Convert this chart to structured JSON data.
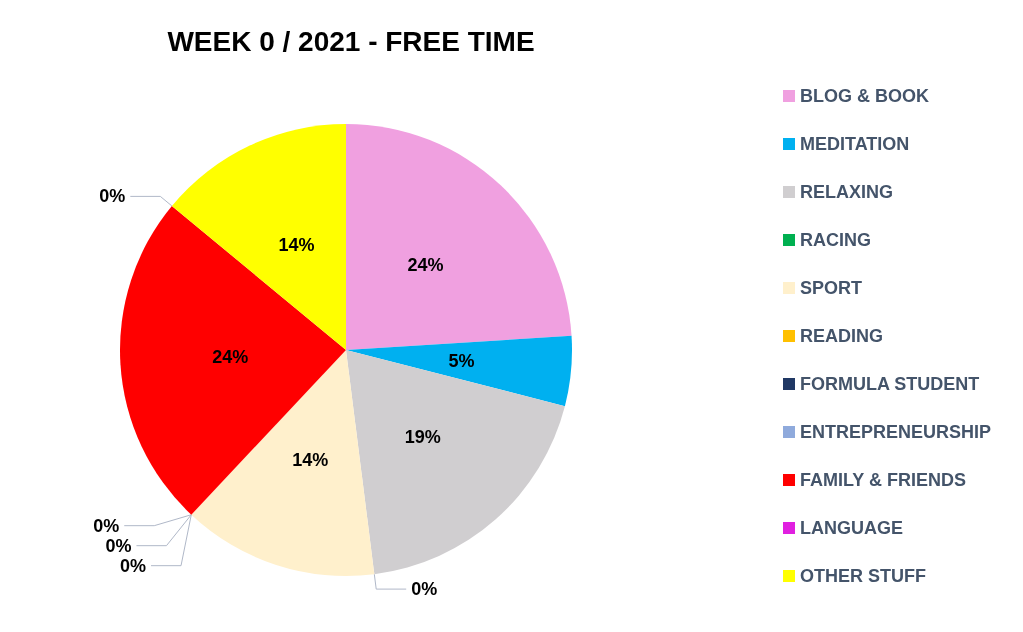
{
  "chart_data": {
    "type": "pie",
    "title": "WEEK 0 / 2021 - FREE TIME",
    "categories": [
      "BLOG & BOOK",
      "MEDITATION",
      "RELAXING",
      "RACING",
      "SPORT",
      "READING",
      "FORMULA STUDENT",
      "ENTREPRENEURSHIP",
      "FAMILY & FRIENDS",
      "LANGUAGE",
      "OTHER STUFF"
    ],
    "values": [
      24,
      5,
      19,
      0,
      14,
      0,
      0,
      0,
      24,
      0,
      14
    ],
    "value_labels": [
      "24%",
      "5%",
      "19%",
      "0%",
      "14%",
      "0%",
      "0%",
      "0%",
      "24%",
      "0%",
      "14%"
    ],
    "colors": [
      "#f0a0e0",
      "#00b0f0",
      "#d0ced0",
      "#00b050",
      "#fff0cc",
      "#ffc000",
      "#203864",
      "#8faadc",
      "#ff0000",
      "#e020e0",
      "#ffff00"
    ],
    "legend": "right"
  }
}
